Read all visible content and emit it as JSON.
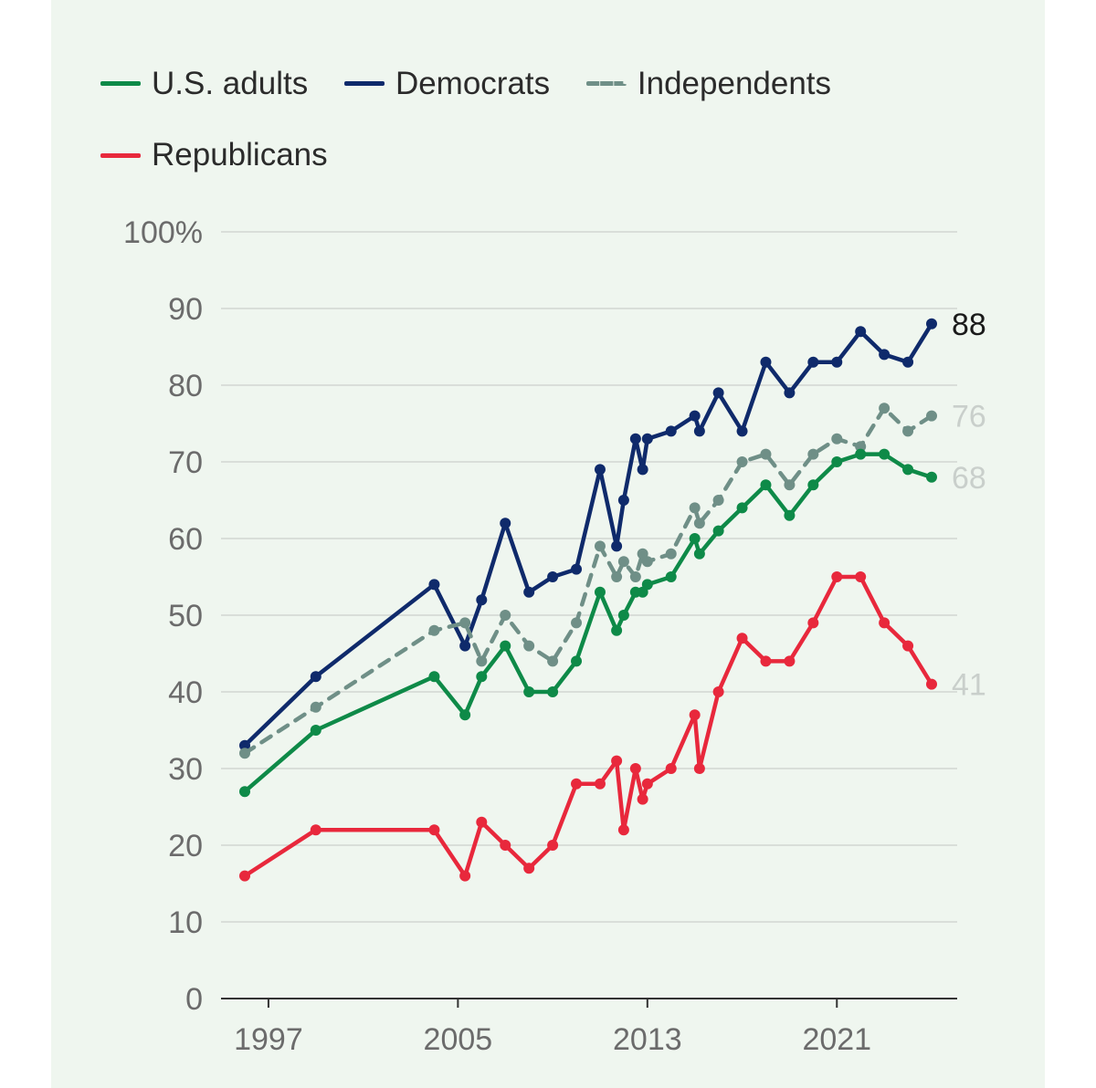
{
  "chart_data": {
    "type": "line",
    "legend_placement": "top",
    "grid": true,
    "ylim": [
      0,
      100
    ],
    "y_ticks": [
      "0",
      "10",
      "20",
      "30",
      "40",
      "50",
      "60",
      "70",
      "80",
      "90",
      "100%"
    ],
    "x_ticks": [
      "1997",
      "2005",
      "2013",
      "2021"
    ],
    "series": [
      {
        "name": "Democrats",
        "color": "#0f2a6b",
        "style": "solid",
        "end_label": "88",
        "end_label_color": "#1a1a1a",
        "points": [
          [
            1996,
            33
          ],
          [
            1999,
            42
          ],
          [
            2004,
            54
          ],
          [
            2005.3,
            46
          ],
          [
            2006,
            52
          ],
          [
            2007,
            62
          ],
          [
            2008,
            53
          ],
          [
            2009,
            55
          ],
          [
            2010,
            56
          ],
          [
            2011,
            69
          ],
          [
            2011.7,
            59
          ],
          [
            2012,
            65
          ],
          [
            2012.5,
            73
          ],
          [
            2012.8,
            69
          ],
          [
            2013,
            73
          ],
          [
            2014,
            74
          ],
          [
            2015,
            76
          ],
          [
            2015.2,
            74
          ],
          [
            2016,
            79
          ],
          [
            2017,
            74
          ],
          [
            2018,
            83
          ],
          [
            2019,
            79
          ],
          [
            2020,
            83
          ],
          [
            2021,
            83
          ],
          [
            2022,
            87
          ],
          [
            2023,
            84
          ],
          [
            2024,
            83
          ],
          [
            2025,
            88
          ]
        ]
      },
      {
        "name": "Independents",
        "color": "#6f8f87",
        "style": "dashed",
        "end_label": "76",
        "end_label_color": "#c9cfcb",
        "points": [
          [
            1996,
            32
          ],
          [
            1999,
            38
          ],
          [
            2004,
            48
          ],
          [
            2005.3,
            49
          ],
          [
            2006,
            44
          ],
          [
            2007,
            50
          ],
          [
            2008,
            46
          ],
          [
            2009,
            44
          ],
          [
            2010,
            49
          ],
          [
            2011,
            59
          ],
          [
            2011.7,
            55
          ],
          [
            2012,
            57
          ],
          [
            2012.5,
            55
          ],
          [
            2012.8,
            58
          ],
          [
            2013,
            57
          ],
          [
            2014,
            58
          ],
          [
            2015,
            64
          ],
          [
            2015.2,
            62
          ],
          [
            2016,
            65
          ],
          [
            2017,
            70
          ],
          [
            2018,
            71
          ],
          [
            2019,
            67
          ],
          [
            2020,
            71
          ],
          [
            2021,
            73
          ],
          [
            2022,
            72
          ],
          [
            2023,
            77
          ],
          [
            2024,
            74
          ],
          [
            2025,
            76
          ]
        ]
      },
      {
        "name": "U.S. adults",
        "color": "#0e8a48",
        "style": "solid",
        "end_label": "68",
        "end_label_color": "#c9cfcb",
        "points": [
          [
            1996,
            27
          ],
          [
            1999,
            35
          ],
          [
            2004,
            42
          ],
          [
            2005.3,
            37
          ],
          [
            2006,
            42
          ],
          [
            2007,
            46
          ],
          [
            2008,
            40
          ],
          [
            2009,
            40
          ],
          [
            2010,
            44
          ],
          [
            2011,
            53
          ],
          [
            2011.7,
            48
          ],
          [
            2012,
            50
          ],
          [
            2012.5,
            53
          ],
          [
            2012.8,
            53
          ],
          [
            2013,
            54
          ],
          [
            2014,
            55
          ],
          [
            2015,
            60
          ],
          [
            2015.2,
            58
          ],
          [
            2016,
            61
          ],
          [
            2017,
            64
          ],
          [
            2018,
            67
          ],
          [
            2019,
            63
          ],
          [
            2020,
            67
          ],
          [
            2021,
            70
          ],
          [
            2022,
            71
          ],
          [
            2023,
            71
          ],
          [
            2024,
            69
          ],
          [
            2025,
            68
          ]
        ]
      },
      {
        "name": "Republicans",
        "color": "#e8283c",
        "style": "solid",
        "end_label": "41",
        "end_label_color": "#c9cfcb",
        "points": [
          [
            1996,
            16
          ],
          [
            1999,
            22
          ],
          [
            2004,
            22
          ],
          [
            2005.3,
            16
          ],
          [
            2006,
            23
          ],
          [
            2007,
            20
          ],
          [
            2008,
            17
          ],
          [
            2009,
            20
          ],
          [
            2010,
            28
          ],
          [
            2011,
            28
          ],
          [
            2011.7,
            31
          ],
          [
            2012,
            22
          ],
          [
            2012.5,
            30
          ],
          [
            2012.8,
            26
          ],
          [
            2013,
            28
          ],
          [
            2014,
            30
          ],
          [
            2015,
            37
          ],
          [
            2015.2,
            30
          ],
          [
            2016,
            40
          ],
          [
            2017,
            47
          ],
          [
            2018,
            44
          ],
          [
            2019,
            44
          ],
          [
            2020,
            49
          ],
          [
            2021,
            55
          ],
          [
            2022,
            55
          ],
          [
            2023,
            49
          ],
          [
            2024,
            46
          ],
          [
            2025,
            41
          ]
        ]
      }
    ],
    "legend_order": [
      "U.S. adults",
      "Democrats",
      "Independents",
      "Republicans"
    ]
  }
}
